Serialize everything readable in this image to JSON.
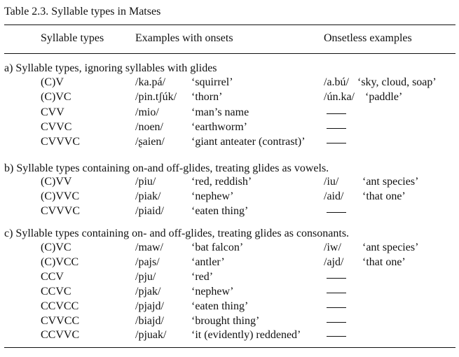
{
  "caption": "Table 2.3.  Syllable types in Matses",
  "headers": {
    "syllable_types": "Syllable types",
    "examples_with_onsets": "Examples with onsets",
    "onsetless_examples": "Onsetless examples"
  },
  "sections": [
    {
      "heading": "a) Syllable types, ignoring syllables with glides",
      "rows": [
        {
          "type": "(C)V",
          "form": "/ka.pá/",
          "gloss": "‘squirrel’",
          "onsetless_form": "/a.bú/",
          "onsetless_gloss": "‘sky, cloud, soap’"
        },
        {
          "type": "(C)VC",
          "form": "/pin.tʃúk/",
          "gloss": "‘thorn’",
          "onsetless_form": "/ún.ka/",
          "onsetless_gloss": "‘paddle’"
        },
        {
          "type": "CVV",
          "form": "/mio/",
          "gloss": "‘man’s name",
          "onsetless_form": "—",
          "onsetless_gloss": ""
        },
        {
          "type": "CVVC",
          "form": "/noen/",
          "gloss": "‘earthworm’",
          "onsetless_form": "—",
          "onsetless_gloss": ""
        },
        {
          "type": "CVVVC",
          "form": "/ʂaien/",
          "gloss": "‘giant anteater (contrast)’",
          "onsetless_form": "—",
          "onsetless_gloss": ""
        }
      ]
    },
    {
      "heading": "b) Syllable types containing on-and off-glides, treating glides as vowels.",
      "rows": [
        {
          "type": "(C)VV",
          "form": "/piu/",
          "gloss": "‘red, reddish’",
          "onsetless_form": "/iu/",
          "onsetless_gloss": "‘ant species’"
        },
        {
          "type": "(C)VVC",
          "form": "/piak/",
          "gloss": "‘nephew’",
          "onsetless_form": "/aid/",
          "onsetless_gloss": "‘that one’"
        },
        {
          "type": "CVVVC",
          "form": "/piaid/",
          "gloss": "‘eaten thing’",
          "onsetless_form": "—",
          "onsetless_gloss": ""
        }
      ]
    },
    {
      "heading": "c) Syllable types containing on- and off-glides, treating glides as consonants.",
      "rows": [
        {
          "type": "(C)VC",
          "form": "/maw/",
          "gloss": "‘bat falcon’",
          "onsetless_form": "/iw/",
          "onsetless_gloss": "‘ant species’"
        },
        {
          "type": "(C)VCC",
          "form": "/pajs/",
          "gloss": "‘antler’",
          "onsetless_form": "/ajd/",
          "onsetless_gloss": "‘that one’"
        },
        {
          "type": "CCV",
          "form": "/pju/",
          "gloss": "‘red’",
          "onsetless_form": "—",
          "onsetless_gloss": ""
        },
        {
          "type": "CCVC",
          "form": "/pjak/",
          "gloss": "‘nephew’",
          "onsetless_form": "—",
          "onsetless_gloss": ""
        },
        {
          "type": "CCVCC",
          "form": "/pjajd/",
          "gloss": "‘eaten thing’",
          "onsetless_form": "—",
          "onsetless_gloss": ""
        },
        {
          "type": "CVVCC",
          "form": "/biajd/",
          "gloss": "‘brought thing’",
          "onsetless_form": "—",
          "onsetless_gloss": ""
        },
        {
          "type": "CCVVC",
          "form": "/pjuak/",
          "gloss": "‘it (evidently) reddened’",
          "onsetless_form": "—",
          "onsetless_gloss": ""
        }
      ]
    }
  ]
}
